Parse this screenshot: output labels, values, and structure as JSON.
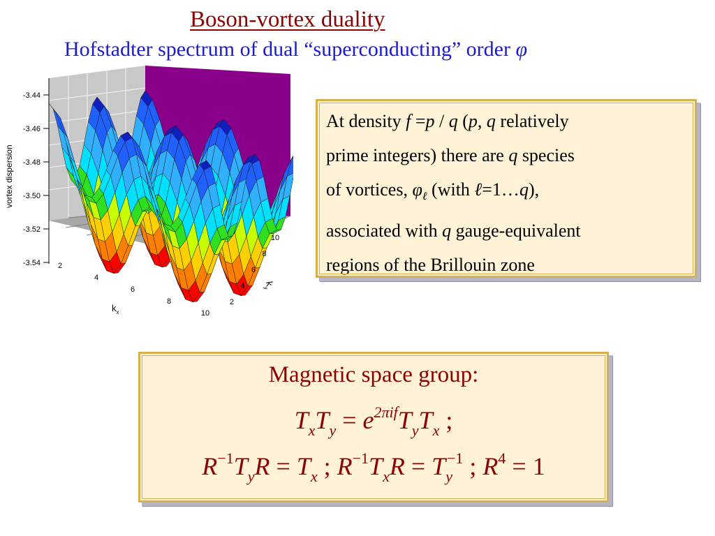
{
  "title": "Boson-vortex duality",
  "subtitle": {
    "text": "Hofstadter spectrum of dual “superconducting” order",
    "symbol": "φ"
  },
  "plot": {
    "ylabel": "vortex dispersion",
    "xlabel": "k",
    "xlabel_sub": "x",
    "ky_label": "k",
    "ky_sub": "y",
    "z_ticks": [
      "-3.44",
      "-3.46",
      "-3.48",
      "-3.50",
      "-3.52",
      "-3.54"
    ],
    "kx_ticks": [
      "2",
      "4",
      "6",
      "8",
      "10"
    ],
    "ky_ticks": [
      "2",
      "4",
      "6",
      "8",
      "10"
    ],
    "colors": {
      "wall_left": "#c8c8c8",
      "wall_right": "#8b008b",
      "floor": "#a8a8a8",
      "bands": [
        "#ff0000",
        "#ff8000",
        "#ffd000",
        "#c8ff00",
        "#30e020",
        "#00e0ff",
        "#30b0ff",
        "#2060ff",
        "#1020c0"
      ],
      "side": "#9a8a18"
    }
  },
  "density_box": {
    "lines": [
      [
        "At density ",
        "f",
        " =",
        "p",
        " / ",
        "q",
        "  (",
        "p",
        ", ",
        "q",
        " relatively"
      ],
      [
        "prime integers) there are ",
        "q",
        " species"
      ],
      [
        "of vortices, ",
        "φ",
        "ℓ",
        "  (with ",
        "ℓ",
        "=1…",
        "q",
        "),"
      ],
      [
        "associated with ",
        "q",
        " gauge-equivalent"
      ],
      [
        "regions of the Brillouin zone"
      ]
    ]
  },
  "msg_box": {
    "heading": "Magnetic space group:",
    "eq1": {
      "a": "T",
      "a_sub": "x",
      "b": "T",
      "b_sub": "y",
      "eq": " = ",
      "e": "e",
      "exp": "2πif",
      "c": "T",
      "c_sub": "y",
      "d": "T",
      "d_sub": "x",
      "sep": "   ;"
    },
    "eq2": {
      "R": "R",
      "inv": "−1",
      "sep": "   ;   ",
      "eq": " = ",
      "four": "4",
      "one": "1",
      "x": "x",
      "y": "y",
      "T": "T"
    }
  }
}
